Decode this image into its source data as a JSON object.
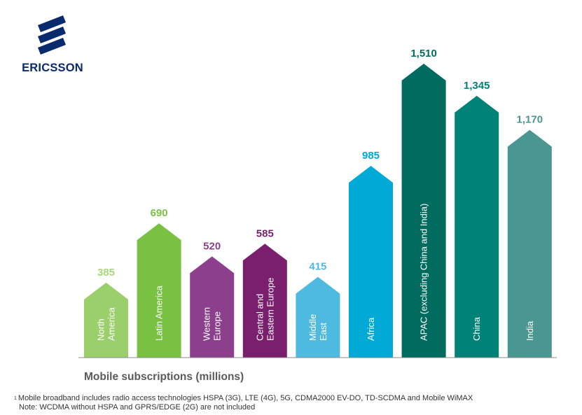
{
  "logo": {
    "text": "ERICSSON",
    "icon": "ericsson-stripes-icon"
  },
  "chart_data": {
    "type": "bar",
    "categories": [
      "North America",
      "Latin America",
      "Western Europe",
      "Central and Eastern Europe",
      "Middle East",
      "Africa",
      "APAC (excluding China and India)",
      "China",
      "India"
    ],
    "category_lines": [
      [
        "North",
        "America"
      ],
      [
        "Latin America"
      ],
      [
        "Western",
        "Europe"
      ],
      [
        "Central and",
        "Eastern Europe"
      ],
      [
        "Middle",
        "East"
      ],
      [
        "Africa"
      ],
      [
        "APAC (excluding China and India)"
      ],
      [
        "China"
      ],
      [
        "India"
      ]
    ],
    "values": [
      385,
      690,
      520,
      585,
      415,
      985,
      1510,
      1345,
      1170
    ],
    "value_labels": [
      "385",
      "690",
      "520",
      "585",
      "415",
      "985",
      "1,510",
      "1,345",
      "1,170"
    ],
    "colors": [
      "#9bcf6b",
      "#79c142",
      "#8c3f8c",
      "#7a1f6e",
      "#4fbae0",
      "#00a9d6",
      "#006b5e",
      "#008276",
      "#4a9690"
    ],
    "label_colors": [
      "#a8d77e",
      "#79c142",
      "#8c3f8c",
      "#7a1f6e",
      "#4fbae0",
      "#00a9d6",
      "#006b5e",
      "#008276",
      "#4a9690"
    ],
    "ylim": [
      0,
      1600
    ],
    "xlabel": "Mobile subscriptions (millions)",
    "grid": false,
    "legend": "none"
  },
  "footnote": {
    "marker": "1",
    "line1": "Mobile broadband includes radio access technologies HSPA (3G), LTE (4G), 5G, CDMA2000 EV-DO, TD-SCDMA and Mobile WiMAX",
    "line2": "Note: WCDMA without HSPA and GPRS/EDGE (2G) are not included"
  }
}
